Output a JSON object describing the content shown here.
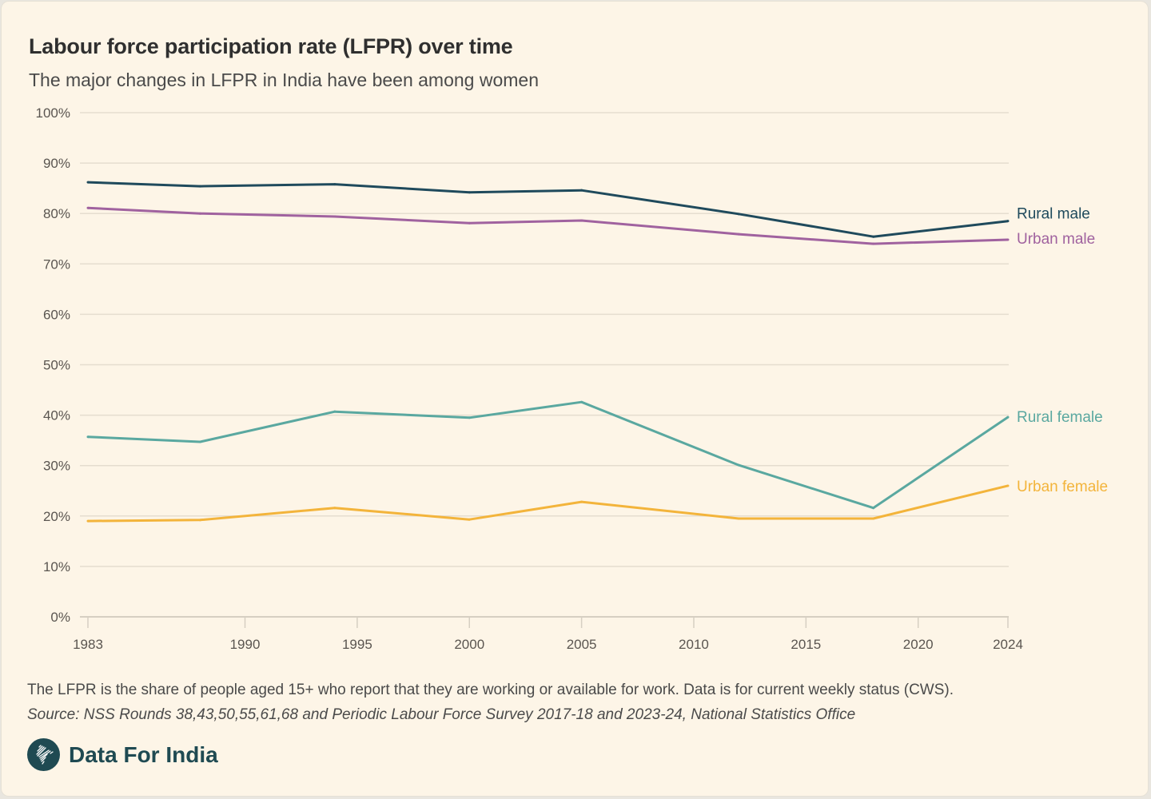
{
  "header": {
    "title": "Labour force participation rate (LFPR) over time",
    "subtitle": "The major changes in LFPR in India have been among women"
  },
  "footer": {
    "note": "The LFPR is the share of people aged 15+ who report that they are working or available for work. Data is for current weekly status (CWS).",
    "source": "Source: NSS Rounds 38,43,50,55,61,68 and Periodic Labour Force Survey 2017-18 and 2023-24, National Statistics Office",
    "brand_name": "Data For India",
    "brand_icon": "india-map-logo-icon"
  },
  "chart_data": {
    "type": "line",
    "title": "Labour force participation rate (LFPR) over time",
    "subtitle": "The major changes in LFPR in India have been among women",
    "xlabel": "",
    "ylabel": "",
    "xlim": [
      1983,
      2024
    ],
    "ylim": [
      0,
      100
    ],
    "x_ticks": [
      1983,
      1990,
      1995,
      2000,
      2005,
      2010,
      2015,
      2020,
      2024
    ],
    "y_ticks": [
      0,
      10,
      20,
      30,
      40,
      50,
      60,
      70,
      80,
      90,
      100
    ],
    "y_tick_labels": [
      "0%",
      "10%",
      "20%",
      "30%",
      "40%",
      "50%",
      "60%",
      "70%",
      "80%",
      "90%",
      "100%"
    ],
    "grid": true,
    "legend": "direct labels at right end of lines",
    "x": [
      1983,
      1988,
      1994,
      2000,
      2005,
      2012,
      2018,
      2024
    ],
    "series": [
      {
        "name": "Rural male",
        "color": "#1f4a5c",
        "values": [
          86.2,
          85.4,
          85.8,
          84.2,
          84.6,
          79.9,
          75.4,
          78.5
        ]
      },
      {
        "name": "Urban male",
        "color": "#a0629f",
        "values": [
          81.1,
          80.0,
          79.4,
          78.1,
          78.6,
          75.9,
          74.0,
          74.8
        ]
      },
      {
        "name": "Rural female",
        "color": "#5aa8a0",
        "values": [
          35.7,
          34.7,
          40.7,
          39.5,
          42.6,
          30.1,
          21.6,
          39.6
        ]
      },
      {
        "name": "Urban female",
        "color": "#f3b43b",
        "values": [
          19.0,
          19.2,
          21.6,
          19.3,
          22.8,
          19.5,
          19.5,
          26.0
        ]
      }
    ]
  }
}
